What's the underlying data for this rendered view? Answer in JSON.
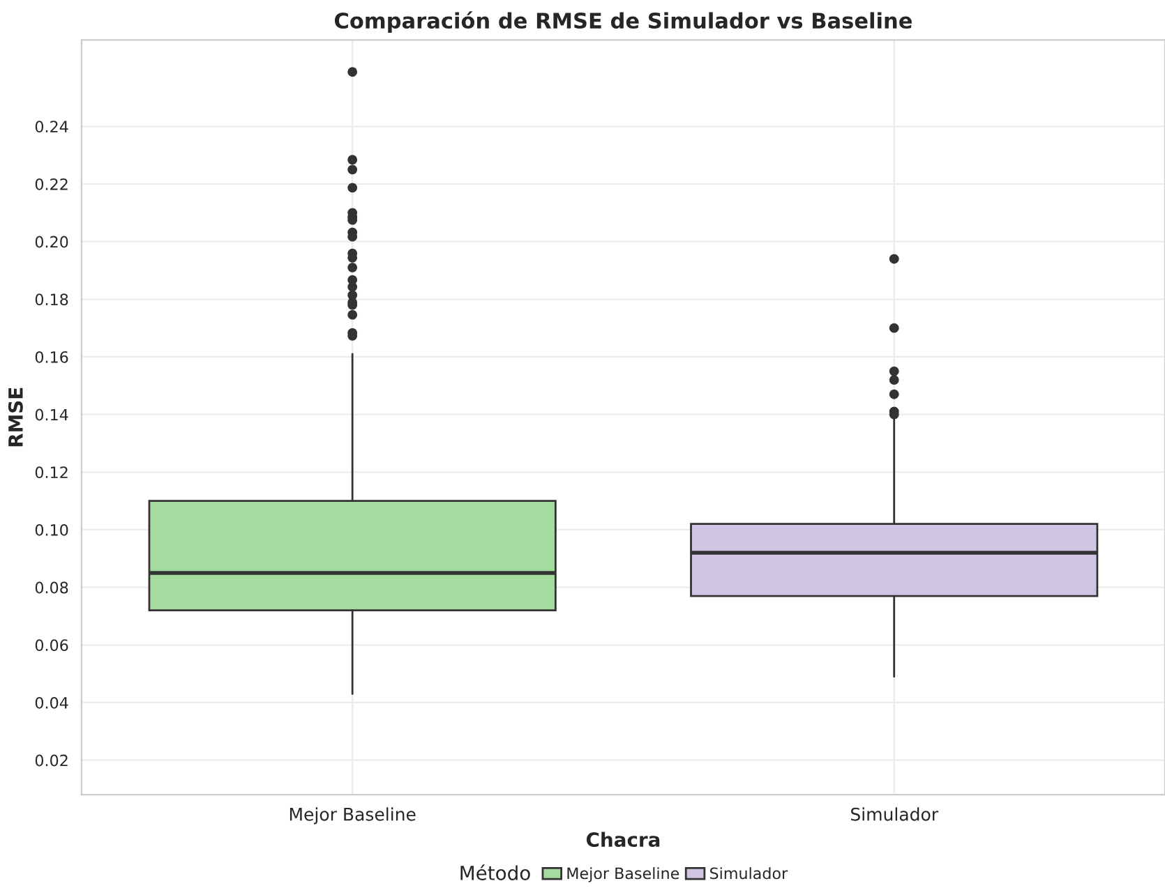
{
  "chart_data": {
    "type": "box",
    "title": "Comparación de RMSE de Simulador vs Baseline",
    "xlabel": "Chacra",
    "ylabel": "RMSE",
    "legend_title": "Método",
    "categories": [
      "Mejor Baseline",
      "Simulador"
    ],
    "series": [
      {
        "name": "Mejor Baseline",
        "color": "#a6dba0",
        "boxes": [
          {
            "low": 0.043,
            "q1": 0.072,
            "median": 0.085,
            "q3": 0.11,
            "high": 0.161,
            "outliers": [
              0.2589,
              0.2284,
              0.225,
              0.2187,
              0.21,
              0.2085,
              0.2075,
              0.2032,
              0.2017,
              0.1959,
              0.1944,
              0.191,
              0.1867,
              0.1843,
              0.1814,
              0.1789,
              0.178,
              0.1746,
              0.1683,
              0.1673
            ]
          },
          null
        ]
      },
      {
        "name": "Simulador",
        "color": "#cfc4e2",
        "boxes": [
          null,
          {
            "low": 0.049,
            "q1": 0.077,
            "median": 0.092,
            "q3": 0.102,
            "high": 0.139,
            "outliers": [
              0.194,
              0.17,
              0.155,
              0.152,
              0.147,
              0.141,
              0.14
            ]
          }
        ]
      }
    ],
    "ylim": [
      0.008,
      0.27
    ],
    "yticks": [
      {
        "value": 0.02,
        "label": "0.02"
      },
      {
        "value": 0.04,
        "label": "0.04"
      },
      {
        "value": 0.06,
        "label": "0.06"
      },
      {
        "value": 0.08,
        "label": "0.08"
      },
      {
        "value": 0.1,
        "label": "0.10"
      },
      {
        "value": 0.12,
        "label": "0.12"
      },
      {
        "value": 0.14,
        "label": "0.14"
      },
      {
        "value": 0.16,
        "label": "0.16"
      },
      {
        "value": 0.18,
        "label": "0.18"
      },
      {
        "value": 0.2,
        "label": "0.20"
      },
      {
        "value": 0.22,
        "label": "0.22"
      },
      {
        "value": 0.24,
        "label": "0.24"
      }
    ],
    "grid": true,
    "legend": "bottom"
  }
}
